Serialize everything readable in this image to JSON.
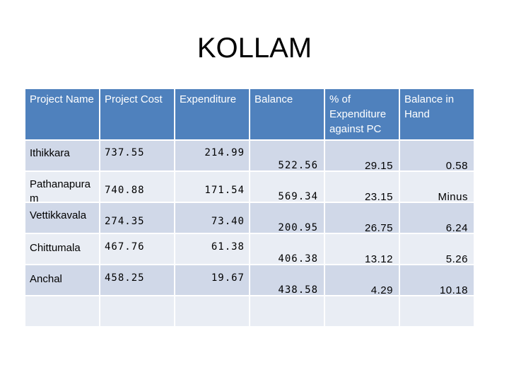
{
  "title": "KOLLAM",
  "table": {
    "headers": [
      "Project Name",
      "Project Cost",
      "Expenditure",
      "Balance",
      "% of Expenditure against PC",
      "Balance in Hand"
    ],
    "rows": [
      {
        "name": "Ithikkara",
        "cost": "737.55",
        "expenditure": "214.99",
        "balance": "522.56",
        "pct": "29.15",
        "hand": "0.58"
      },
      {
        "name": "Pathanapuram",
        "cost": "740.88",
        "expenditure": "171.54",
        "balance": "569.34",
        "pct": "23.15",
        "hand": "Minus"
      },
      {
        "name": "Vettikkavala",
        "cost": "274.35",
        "expenditure": "73.40",
        "balance": "200.95",
        "pct": "26.75",
        "hand": "6.24"
      },
      {
        "name": "Chittumala",
        "cost": "467.76",
        "expenditure": "61.38",
        "balance": "406.38",
        "pct": "13.12",
        "hand": "5.26"
      },
      {
        "name": "Anchal",
        "cost": "458.25",
        "expenditure": "19.67",
        "balance": "438.58",
        "pct": "4.29",
        "hand": "10.18"
      }
    ]
  }
}
